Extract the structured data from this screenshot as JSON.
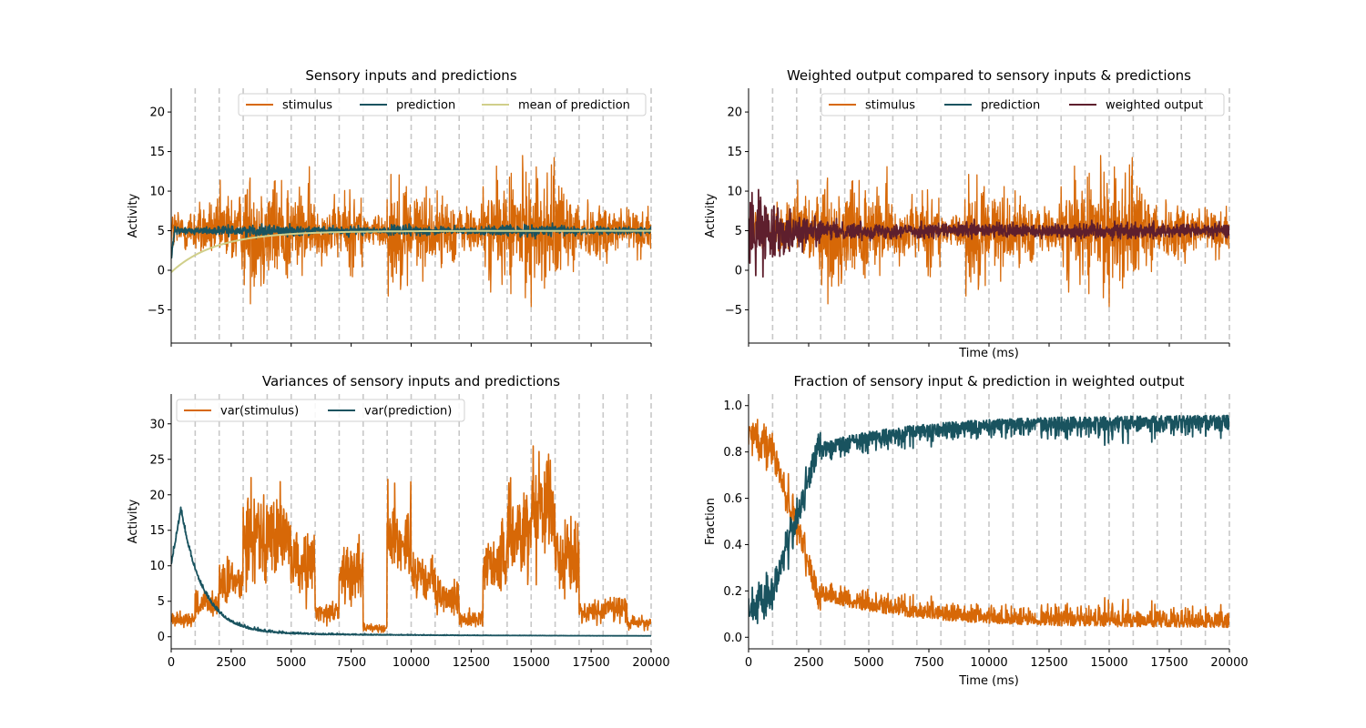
{
  "colors": {
    "stimulus": "#d76807",
    "prediction": "#19535f",
    "mean_prediction": "#d0cf8a",
    "weighted_output": "#5e1f2d",
    "marker_lines": "#c8c8c8"
  },
  "chart_data": [
    {
      "id": "top-left",
      "type": "line",
      "title": "Sensory inputs and predictions",
      "xlabel": "",
      "ylabel": "Activity",
      "xlim": [
        0,
        20000
      ],
      "ylim": [
        -9.2,
        23
      ],
      "yticks": [
        -5,
        0,
        5,
        10,
        15,
        20
      ],
      "ytick_labels": [
        "−5",
        "0",
        "5",
        "10",
        "15",
        "20"
      ],
      "xticks": [
        0,
        2500,
        5000,
        7500,
        10000,
        12500,
        15000,
        17500,
        20000
      ],
      "xtick_labels": [],
      "stimulus_phases": [
        {
          "start": 0,
          "end": 1000,
          "mean": 5,
          "sd": 1.5
        },
        {
          "start": 1000,
          "end": 2000,
          "mean": 5,
          "sd": 1.8
        },
        {
          "start": 2000,
          "end": 3000,
          "mean": 5,
          "sd": 2.5
        },
        {
          "start": 3000,
          "end": 4000,
          "mean": 5,
          "sd": 3.8
        },
        {
          "start": 4000,
          "end": 5000,
          "mean": 5,
          "sd": 3.6
        },
        {
          "start": 5000,
          "end": 6000,
          "mean": 5,
          "sd": 2.8
        },
        {
          "start": 6000,
          "end": 7000,
          "mean": 5,
          "sd": 1.8
        },
        {
          "start": 7000,
          "end": 8000,
          "mean": 5,
          "sd": 2.7
        },
        {
          "start": 8000,
          "end": 9000,
          "mean": 5,
          "sd": 1.1
        },
        {
          "start": 9000,
          "end": 10000,
          "mean": 5,
          "sd": 3.6
        },
        {
          "start": 10000,
          "end": 11000,
          "mean": 5,
          "sd": 2.6
        },
        {
          "start": 11000,
          "end": 12000,
          "mean": 5,
          "sd": 2.2
        },
        {
          "start": 12000,
          "end": 13000,
          "mean": 5,
          "sd": 1.6
        },
        {
          "start": 13000,
          "end": 14000,
          "mean": 5,
          "sd": 3.2
        },
        {
          "start": 14000,
          "end": 16000,
          "mean": 5,
          "sd": 4.0
        },
        {
          "start": 16000,
          "end": 17000,
          "mean": 5,
          "sd": 3.3
        },
        {
          "start": 17000,
          "end": 18000,
          "mean": 5,
          "sd": 1.8
        },
        {
          "start": 18000,
          "end": 19000,
          "mean": 5,
          "sd": 2.0
        },
        {
          "start": 19000,
          "end": 20000,
          "mean": 5,
          "sd": 1.5
        }
      ],
      "prediction_level": 5,
      "mean_prediction_start": 0,
      "mean_prediction_end": 5,
      "legend": {
        "placement": "upper-right",
        "entries": [
          {
            "label": "stimulus",
            "series": "stimulus"
          },
          {
            "label": "prediction",
            "series": "prediction"
          },
          {
            "label": "mean of prediction",
            "series": "mean_prediction"
          }
        ]
      },
      "vlines": [
        1000,
        2000,
        3000,
        4000,
        5000,
        6000,
        7000,
        8000,
        9000,
        10000,
        11000,
        12000,
        13000,
        14000,
        15000,
        16000,
        17000,
        18000,
        19000,
        20000
      ]
    },
    {
      "id": "top-right",
      "type": "line",
      "title": "Weighted output compared to sensory inputs & predictions",
      "xlabel": "Time (ms)",
      "ylabel": "Activity",
      "xlim": [
        0,
        20000
      ],
      "ylim": [
        -9.2,
        23
      ],
      "yticks": [
        -5,
        0,
        5,
        10,
        15,
        20
      ],
      "ytick_labels": [
        "−5",
        "0",
        "5",
        "10",
        "15",
        "20"
      ],
      "xticks": [
        0,
        2500,
        5000,
        7500,
        10000,
        12500,
        15000,
        17500,
        20000
      ],
      "xtick_labels": [],
      "weighted_output_level": 5,
      "legend": {
        "placement": "upper-right",
        "entries": [
          {
            "label": "stimulus",
            "series": "stimulus"
          },
          {
            "label": "prediction",
            "series": "prediction"
          },
          {
            "label": "weighted output",
            "series": "weighted_output"
          }
        ]
      },
      "vlines": [
        1000,
        2000,
        3000,
        4000,
        5000,
        6000,
        7000,
        8000,
        9000,
        10000,
        11000,
        12000,
        13000,
        14000,
        15000,
        16000,
        17000,
        18000,
        19000,
        20000
      ]
    },
    {
      "id": "bottom-left",
      "type": "line",
      "title": "Variances of sensory inputs and predictions",
      "xlabel": "",
      "ylabel": "Activity",
      "xlim": [
        0,
        20000
      ],
      "ylim": [
        -1.7,
        34.2
      ],
      "yticks": [
        0,
        5,
        10,
        15,
        20,
        25,
        30
      ],
      "ytick_labels": [
        "0",
        "5",
        "10",
        "15",
        "20",
        "25",
        "30"
      ],
      "xticks": [
        0,
        2500,
        5000,
        7500,
        10000,
        12500,
        15000,
        17500,
        20000
      ],
      "xtick_labels": [
        "0",
        "2500",
        "5000",
        "7500",
        "10000",
        "12500",
        "15000",
        "17500",
        "20000"
      ],
      "var_stimulus_levels": [
        {
          "start": 0,
          "end": 1000,
          "value": 2.5
        },
        {
          "start": 1000,
          "end": 2000,
          "value": 4.5
        },
        {
          "start": 2000,
          "end": 3000,
          "value": 7.5
        },
        {
          "start": 3000,
          "end": 4000,
          "value": 15
        },
        {
          "start": 4000,
          "end": 5000,
          "value": 14
        },
        {
          "start": 5000,
          "end": 6000,
          "value": 10
        },
        {
          "start": 6000,
          "end": 7000,
          "value": 3.5
        },
        {
          "start": 7000,
          "end": 8000,
          "value": 9
        },
        {
          "start": 8000,
          "end": 9000,
          "value": 1.3
        },
        {
          "start": 9000,
          "end": 10000,
          "value": 14
        },
        {
          "start": 10000,
          "end": 11000,
          "value": 8
        },
        {
          "start": 11000,
          "end": 12000,
          "value": 5.5
        },
        {
          "start": 12000,
          "end": 13000,
          "value": 2.5
        },
        {
          "start": 13000,
          "end": 14000,
          "value": 10.5
        },
        {
          "start": 14000,
          "end": 15000,
          "value": 15
        },
        {
          "start": 15000,
          "end": 16000,
          "value": 19
        },
        {
          "start": 16000,
          "end": 17000,
          "value": 11
        },
        {
          "start": 17000,
          "end": 18000,
          "value": 3.5
        },
        {
          "start": 18000,
          "end": 19000,
          "value": 4
        },
        {
          "start": 19000,
          "end": 20000,
          "value": 2
        }
      ],
      "var_prediction_peak": 17.5,
      "legend": {
        "placement": "upper-left",
        "entries": [
          {
            "label": "var(stimulus)",
            "series": "stimulus"
          },
          {
            "label": "var(prediction)",
            "series": "prediction"
          }
        ]
      },
      "vlines": [
        1000,
        2000,
        3000,
        4000,
        5000,
        6000,
        7000,
        8000,
        9000,
        10000,
        11000,
        12000,
        13000,
        14000,
        15000,
        16000,
        17000,
        18000,
        19000,
        20000
      ]
    },
    {
      "id": "bottom-right",
      "type": "line",
      "title": "Fraction of sensory input & prediction in weighted output",
      "xlabel": "Time (ms)",
      "ylabel": "Fraction",
      "xlim": [
        0,
        20000
      ],
      "ylim": [
        -0.05,
        1.05
      ],
      "yticks": [
        0,
        0.2,
        0.4,
        0.6,
        0.8,
        1.0
      ],
      "ytick_labels": [
        "0.0",
        "0.2",
        "0.4",
        "0.6",
        "0.8",
        "1.0"
      ],
      "xticks": [
        0,
        2500,
        5000,
        7500,
        10000,
        12500,
        15000,
        17500,
        20000
      ],
      "xtick_labels": [
        "0",
        "2500",
        "5000",
        "7500",
        "10000",
        "12500",
        "15000",
        "17500",
        "20000"
      ],
      "vlines": [
        1000,
        2000,
        3000,
        4000,
        5000,
        6000,
        7000,
        8000,
        9000,
        10000,
        11000,
        12000,
        13000,
        14000,
        15000,
        16000,
        17000,
        18000,
        19000,
        20000
      ]
    }
  ]
}
